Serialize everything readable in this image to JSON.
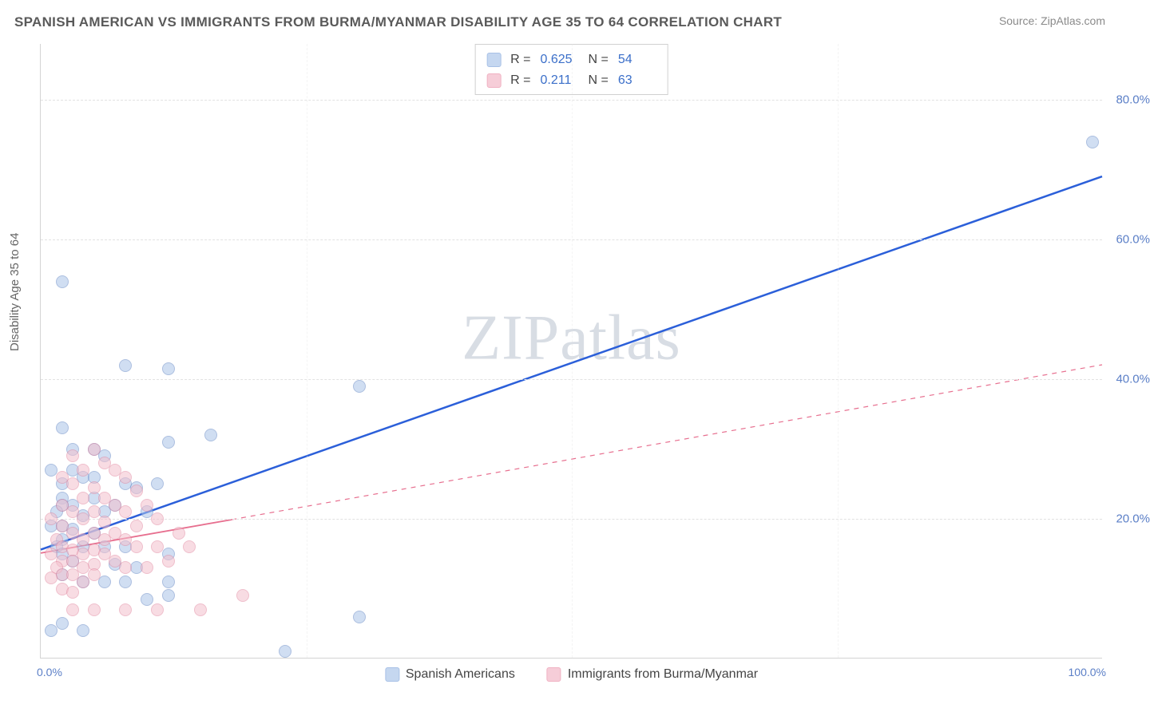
{
  "title": "SPANISH AMERICAN VS IMMIGRANTS FROM BURMA/MYANMAR DISABILITY AGE 35 TO 64 CORRELATION CHART",
  "source": "Source: ZipAtlas.com",
  "ylabel": "Disability Age 35 to 64",
  "watermark": "ZIPatlas",
  "chart": {
    "type": "scatter",
    "xlim": [
      0,
      100
    ],
    "ylim": [
      0,
      88
    ],
    "ytick_step": 20,
    "ytick_labels": [
      "20.0%",
      "40.0%",
      "60.0%",
      "80.0%"
    ],
    "xtick_labels": [
      "0.0%",
      "100.0%"
    ],
    "grid_color": "#e2e2e2",
    "background_color": "#ffffff",
    "axis_color": "#d4d4d4",
    "marker_size": 16,
    "marker_opacity": 0.55
  },
  "series": [
    {
      "name": "Spanish Americans",
      "color_fill": "#aac4e8",
      "color_stroke": "#6a8cc7",
      "trend_color": "#2b5fd9",
      "trend_width": 2.5,
      "trend_style": "solid",
      "R": "0.625",
      "N": "54",
      "trend": {
        "x1": 0,
        "y1": 15.5,
        "x2": 100,
        "y2": 69
      },
      "points": [
        [
          99,
          74
        ],
        [
          2,
          54
        ],
        [
          8,
          42
        ],
        [
          12,
          41.5
        ],
        [
          30,
          39
        ],
        [
          12,
          31
        ],
        [
          16,
          32
        ],
        [
          2,
          33
        ],
        [
          3,
          30
        ],
        [
          5,
          30
        ],
        [
          6,
          29
        ],
        [
          4,
          26
        ],
        [
          2,
          25
        ],
        [
          8,
          25
        ],
        [
          9,
          24.5
        ],
        [
          11,
          25
        ],
        [
          2,
          23
        ],
        [
          5,
          23
        ],
        [
          7,
          22
        ],
        [
          3,
          22
        ],
        [
          4,
          20.5
        ],
        [
          6,
          21
        ],
        [
          10,
          21
        ],
        [
          1,
          19
        ],
        [
          2,
          19
        ],
        [
          3,
          18.5
        ],
        [
          5,
          18
        ],
        [
          2,
          17
        ],
        [
          1.5,
          16
        ],
        [
          4,
          16
        ],
        [
          6,
          16
        ],
        [
          8,
          16
        ],
        [
          12,
          15
        ],
        [
          2,
          15
        ],
        [
          3,
          14
        ],
        [
          9,
          13
        ],
        [
          7,
          13.5
        ],
        [
          2,
          12
        ],
        [
          4,
          11
        ],
        [
          6,
          11
        ],
        [
          8,
          11
        ],
        [
          12,
          11
        ],
        [
          10,
          8.5
        ],
        [
          2,
          5
        ],
        [
          4,
          4
        ],
        [
          1,
          4
        ],
        [
          12,
          9
        ],
        [
          23,
          1
        ],
        [
          30,
          6
        ],
        [
          2,
          22
        ],
        [
          1.5,
          21
        ],
        [
          5,
          26
        ],
        [
          3,
          27
        ],
        [
          1,
          27
        ]
      ]
    },
    {
      "name": "Immigrants from Burma/Myanmar",
      "color_fill": "#f4c0cd",
      "color_stroke": "#e28ba3",
      "trend_color": "#e76f8f",
      "trend_width": 1.8,
      "trend_style": "solid_then_dashed",
      "R": "0.211",
      "N": "63",
      "trend_solid": {
        "x1": 0,
        "y1": 15,
        "x2": 18,
        "y2": 19.8
      },
      "trend_dashed": {
        "x1": 18,
        "y1": 19.8,
        "x2": 100,
        "y2": 42
      },
      "points": [
        [
          5,
          30
        ],
        [
          3,
          29
        ],
        [
          6,
          28
        ],
        [
          4,
          27
        ],
        [
          7,
          27
        ],
        [
          2,
          26
        ],
        [
          8,
          26
        ],
        [
          3,
          25
        ],
        [
          5,
          24.5
        ],
        [
          9,
          24
        ],
        [
          4,
          23
        ],
        [
          6,
          23
        ],
        [
          2,
          22
        ],
        [
          7,
          22
        ],
        [
          10,
          22
        ],
        [
          3,
          21
        ],
        [
          5,
          21
        ],
        [
          8,
          21
        ],
        [
          1,
          20
        ],
        [
          4,
          20
        ],
        [
          6,
          19.5
        ],
        [
          9,
          19
        ],
        [
          11,
          20
        ],
        [
          2,
          19
        ],
        [
          3,
          18
        ],
        [
          5,
          18
        ],
        [
          7,
          18
        ],
        [
          13,
          18
        ],
        [
          1.5,
          17
        ],
        [
          4,
          17
        ],
        [
          6,
          17
        ],
        [
          8,
          17
        ],
        [
          2,
          16
        ],
        [
          3,
          15.5
        ],
        [
          5,
          15.5
        ],
        [
          9,
          16
        ],
        [
          11,
          16
        ],
        [
          14,
          16
        ],
        [
          1,
          15
        ],
        [
          4,
          15
        ],
        [
          6,
          15
        ],
        [
          2,
          14
        ],
        [
          3,
          14
        ],
        [
          5,
          13.5
        ],
        [
          7,
          14
        ],
        [
          1.5,
          13
        ],
        [
          4,
          13
        ],
        [
          8,
          13
        ],
        [
          10,
          13
        ],
        [
          12,
          14
        ],
        [
          2,
          12
        ],
        [
          3,
          12
        ],
        [
          5,
          12
        ],
        [
          1,
          11.5
        ],
        [
          4,
          11
        ],
        [
          2,
          10
        ],
        [
          3,
          9.5
        ],
        [
          5,
          7
        ],
        [
          8,
          7
        ],
        [
          11,
          7
        ],
        [
          15,
          7
        ],
        [
          19,
          9
        ],
        [
          3,
          7
        ]
      ]
    }
  ],
  "legend_bottom": [
    {
      "swatch": "blue",
      "label": "Spanish Americans"
    },
    {
      "swatch": "pink",
      "label": "Immigrants from Burma/Myanmar"
    }
  ],
  "stats_box": [
    {
      "swatch": "blue",
      "R_label": "R =",
      "R": "0.625",
      "N_label": "N =",
      "N": "54"
    },
    {
      "swatch": "pink",
      "R_label": "R =",
      "R": "0.211",
      "N_label": "N =",
      "N": "63"
    }
  ]
}
